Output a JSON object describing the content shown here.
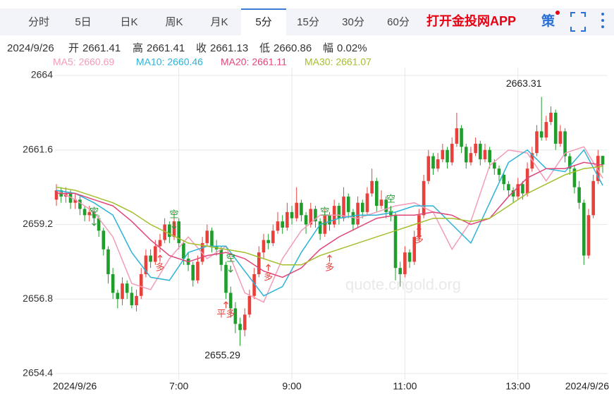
{
  "tabs": [
    "分时",
    "5日",
    "日K",
    "周K",
    "月K",
    "5分",
    "15分",
    "30分",
    "60分"
  ],
  "active_tab": 5,
  "cta": "打开金投网APP",
  "strategy_icon": "策",
  "info": [
    {
      "text": "2024/9/26"
    },
    {
      "text": "开"
    },
    {
      "text": "2661.41"
    },
    {
      "text": "高"
    },
    {
      "text": "2661.41"
    },
    {
      "text": "收"
    },
    {
      "text": "2661.13"
    },
    {
      "text": "低"
    },
    {
      "text": "2660.86"
    },
    {
      "text": "幅"
    },
    {
      "text": "0.02%"
    }
  ],
  "chart_data": {
    "type": "candlestick",
    "watermark": "quote.cngold.org",
    "date_start": "2024/9/26",
    "date_end": "2024/9/26",
    "up_color": "#e8413c",
    "down_color": "#1f9e2c",
    "ylim": [
      2654.4,
      2664
    ],
    "yticks": [
      2664,
      2661.6,
      2659.2,
      2656.8,
      2654.4
    ],
    "grid": true,
    "xlim": [
      0,
      116
    ],
    "xticks": [
      {
        "value": 26,
        "label": "7:00"
      },
      {
        "value": 50,
        "label": "9:00"
      },
      {
        "value": 74,
        "label": "11:00"
      },
      {
        "value": 98,
        "label": "13:00"
      }
    ],
    "ohlc": [
      [
        2660.0,
        2660.5,
        2659.8,
        2660.3
      ],
      [
        2660.3,
        2660.4,
        2659.9,
        2660.1
      ],
      [
        2660.1,
        2660.4,
        2659.9,
        2660.2
      ],
      [
        2660.2,
        2660.3,
        2659.7,
        2659.9
      ],
      [
        2659.9,
        2660.2,
        2659.7,
        2660.0
      ],
      [
        2660.0,
        2660.1,
        2659.5,
        2659.7
      ],
      [
        2659.7,
        2659.8,
        2659.3,
        2659.5
      ],
      [
        2659.5,
        2659.8,
        2659.3,
        2659.6
      ],
      [
        2659.6,
        2659.7,
        2659.2,
        2659.4
      ],
      [
        2659.4,
        2659.5,
        2658.8,
        2659.0
      ],
      [
        2659.0,
        2659.1,
        2658.2,
        2658.4
      ],
      [
        2658.4,
        2658.5,
        2657.3,
        2657.6
      ],
      [
        2657.6,
        2657.8,
        2656.8,
        2657.0
      ],
      [
        2657.0,
        2657.1,
        2656.5,
        2656.8
      ],
      [
        2656.8,
        2657.5,
        2656.6,
        2657.3
      ],
      [
        2657.3,
        2657.4,
        2656.8,
        2657.0
      ],
      [
        2657.0,
        2657.2,
        2656.5,
        2656.6
      ],
      [
        2656.6,
        2657.1,
        2656.4,
        2656.9
      ],
      [
        2656.9,
        2657.8,
        2656.8,
        2657.6
      ],
      [
        2657.6,
        2658.4,
        2657.5,
        2658.2
      ],
      [
        2658.2,
        2658.4,
        2657.8,
        2658.0
      ],
      [
        2658.0,
        2658.7,
        2657.9,
        2658.5
      ],
      [
        2658.5,
        2658.9,
        2658.3,
        2658.7
      ],
      [
        2658.7,
        2659.4,
        2658.6,
        2659.2
      ],
      [
        2659.2,
        2659.3,
        2658.6,
        2658.8
      ],
      [
        2658.8,
        2659.6,
        2658.7,
        2659.3
      ],
      [
        2659.3,
        2659.4,
        2658.4,
        2658.6
      ],
      [
        2658.6,
        2658.7,
        2657.9,
        2658.1
      ],
      [
        2658.1,
        2658.3,
        2657.7,
        2657.9
      ],
      [
        2657.9,
        2658.0,
        2657.2,
        2657.4
      ],
      [
        2657.4,
        2658.2,
        2657.3,
        2658.0
      ],
      [
        2658.0,
        2658.8,
        2657.9,
        2658.6
      ],
      [
        2658.6,
        2659.2,
        2658.5,
        2659.0
      ],
      [
        2659.0,
        2659.1,
        2658.3,
        2658.5
      ],
      [
        2658.5,
        2658.7,
        2658.2,
        2658.4
      ],
      [
        2658.4,
        2658.5,
        2657.7,
        2657.9
      ],
      [
        2657.9,
        2658.0,
        2656.8,
        2657.0
      ],
      [
        2657.0,
        2657.2,
        2656.2,
        2656.5
      ],
      [
        2656.5,
        2656.7,
        2655.7,
        2656.0
      ],
      [
        2656.0,
        2656.2,
        2655.29,
        2655.8
      ],
      [
        2655.8,
        2656.5,
        2655.6,
        2656.3
      ],
      [
        2656.3,
        2657.1,
        2656.2,
        2656.9
      ],
      [
        2656.9,
        2657.8,
        2656.8,
        2657.6
      ],
      [
        2657.6,
        2658.5,
        2657.5,
        2658.3
      ],
      [
        2658.3,
        2658.9,
        2658.1,
        2658.7
      ],
      [
        2658.7,
        2658.9,
        2658.4,
        2658.6
      ],
      [
        2658.6,
        2659.2,
        2658.5,
        2659.0
      ],
      [
        2659.0,
        2659.6,
        2658.9,
        2659.3
      ],
      [
        2659.3,
        2659.5,
        2658.9,
        2659.1
      ],
      [
        2659.1,
        2659.9,
        2659.0,
        2659.6
      ],
      [
        2659.6,
        2659.8,
        2659.2,
        2659.4
      ],
      [
        2659.4,
        2660.4,
        2659.3,
        2659.9
      ],
      [
        2659.9,
        2660.0,
        2659.3,
        2659.5
      ],
      [
        2659.5,
        2659.6,
        2658.9,
        2659.2
      ],
      [
        2659.2,
        2659.9,
        2659.1,
        2659.7
      ],
      [
        2659.7,
        2659.8,
        2659.1,
        2659.3
      ],
      [
        2659.3,
        2659.4,
        2658.7,
        2658.9
      ],
      [
        2658.9,
        2659.7,
        2658.8,
        2659.5
      ],
      [
        2659.5,
        2659.6,
        2659.0,
        2659.2
      ],
      [
        2659.2,
        2660.0,
        2659.1,
        2659.8
      ],
      [
        2659.8,
        2659.9,
        2659.2,
        2659.4
      ],
      [
        2659.4,
        2660.4,
        2659.3,
        2660.1
      ],
      [
        2660.1,
        2660.2,
        2659.4,
        2659.6
      ],
      [
        2659.6,
        2659.7,
        2659.0,
        2659.2
      ],
      [
        2659.2,
        2660.1,
        2659.1,
        2659.9
      ],
      [
        2659.9,
        2660.0,
        2659.4,
        2659.6
      ],
      [
        2659.6,
        2660.4,
        2659.5,
        2660.2
      ],
      [
        2660.2,
        2661.0,
        2660.1,
        2660.6
      ],
      [
        2660.6,
        2660.7,
        2659.6,
        2659.8
      ],
      [
        2659.8,
        2660.3,
        2659.7,
        2660.0
      ],
      [
        2660.0,
        2660.1,
        2659.4,
        2659.6
      ],
      [
        2659.6,
        2659.8,
        2659.3,
        2659.5
      ],
      [
        2659.5,
        2659.6,
        2657.4,
        2657.8
      ],
      [
        2657.8,
        2658.0,
        2657.2,
        2657.6
      ],
      [
        2657.6,
        2658.5,
        2657.5,
        2658.3
      ],
      [
        2658.3,
        2658.4,
        2657.8,
        2658.0
      ],
      [
        2658.0,
        2659.0,
        2657.9,
        2658.8
      ],
      [
        2658.8,
        2659.7,
        2658.7,
        2659.5
      ],
      [
        2659.5,
        2660.8,
        2659.4,
        2660.6
      ],
      [
        2660.6,
        2661.6,
        2660.5,
        2661.4
      ],
      [
        2661.4,
        2661.5,
        2660.8,
        2661.0
      ],
      [
        2661.0,
        2661.5,
        2660.9,
        2661.3
      ],
      [
        2661.3,
        2661.8,
        2661.2,
        2661.6
      ],
      [
        2661.6,
        2661.7,
        2661.0,
        2661.2
      ],
      [
        2661.2,
        2662.0,
        2661.1,
        2661.8
      ],
      [
        2661.8,
        2662.8,
        2661.7,
        2662.3
      ],
      [
        2662.3,
        2662.4,
        2661.5,
        2661.7
      ],
      [
        2661.7,
        2661.8,
        2661.0,
        2661.2
      ],
      [
        2661.2,
        2661.7,
        2661.1,
        2661.5
      ],
      [
        2661.5,
        2662.0,
        2661.4,
        2661.8
      ],
      [
        2661.8,
        2661.9,
        2661.1,
        2661.3
      ],
      [
        2661.3,
        2661.8,
        2661.2,
        2661.6
      ],
      [
        2661.6,
        2661.7,
        2661.0,
        2661.2
      ],
      [
        2661.2,
        2661.3,
        2660.8,
        2661.0
      ],
      [
        2661.0,
        2661.1,
        2660.6,
        2660.8
      ],
      [
        2660.8,
        2660.9,
        2660.3,
        2660.5
      ],
      [
        2660.5,
        2660.6,
        2660.1,
        2660.3
      ],
      [
        2660.3,
        2660.4,
        2659.9,
        2660.1
      ],
      [
        2660.1,
        2660.7,
        2660.0,
        2660.5
      ],
      [
        2660.5,
        2660.6,
        2660.0,
        2660.2
      ],
      [
        2660.2,
        2661.2,
        2660.1,
        2661.0
      ],
      [
        2661.0,
        2661.7,
        2660.9,
        2661.5
      ],
      [
        2661.5,
        2662.4,
        2661.4,
        2662.2
      ],
      [
        2662.2,
        2663.31,
        2661.9,
        2662.0
      ],
      [
        2662.0,
        2662.7,
        2661.9,
        2662.5
      ],
      [
        2662.5,
        2663.0,
        2662.4,
        2662.8
      ],
      [
        2662.8,
        2662.9,
        2661.6,
        2661.8
      ],
      [
        2661.8,
        2662.4,
        2661.7,
        2662.2
      ],
      [
        2662.2,
        2662.3,
        2661.2,
        2661.4
      ],
      [
        2661.4,
        2661.5,
        2660.8,
        2661.0
      ],
      [
        2661.0,
        2661.1,
        2660.2,
        2660.4
      ],
      [
        2660.4,
        2660.6,
        2659.7,
        2659.9
      ],
      [
        2659.9,
        2660.0,
        2657.9,
        2658.2
      ],
      [
        2658.2,
        2659.7,
        2658.1,
        2659.5
      ],
      [
        2659.5,
        2660.8,
        2659.4,
        2660.6
      ],
      [
        2660.6,
        2661.6,
        2660.5,
        2661.41
      ],
      [
        2661.41,
        2661.41,
        2660.86,
        2661.13
      ]
    ],
    "ma_x": [
      0,
      4,
      8,
      12,
      16,
      20,
      24,
      28,
      32,
      36,
      40,
      44,
      48,
      52,
      56,
      60,
      64,
      68,
      72,
      76,
      80,
      84,
      88,
      92,
      96,
      100,
      104,
      108,
      112,
      116
    ],
    "ma_series": [
      {
        "name": "MA5: 2660.69",
        "color": "#f29cb7",
        "values": [
          2660.3,
          2660.0,
          2659.6,
          2658.8,
          2657.3,
          2657.1,
          2658.1,
          2658.8,
          2658.1,
          2658.5,
          2657.0,
          2656.7,
          2658.1,
          2659.0,
          2659.5,
          2659.5,
          2659.4,
          2659.6,
          2659.8,
          2659.9,
          2659.6,
          2658.4,
          2659.3,
          2661.1,
          2661.6,
          2661.5,
          2660.6,
          2661.5,
          2661.7,
          2660.69
        ]
      },
      {
        "name": "MA10: 2660.46",
        "color": "#2bb3d8",
        "values": [
          2660.3,
          2660.2,
          2659.9,
          2659.5,
          2658.3,
          2657.5,
          2657.4,
          2658.3,
          2658.5,
          2658.5,
          2657.7,
          2656.9,
          2657.2,
          2658.3,
          2659.2,
          2659.4,
          2659.5,
          2659.5,
          2659.6,
          2659.8,
          2659.8,
          2659.2,
          2658.6,
          2659.9,
          2661.2,
          2661.6,
          2661.0,
          2660.9,
          2661.6,
          2660.46
        ]
      },
      {
        "name": "MA20: 2661.11",
        "color": "#e0457a",
        "values": [
          2660.2,
          2660.2,
          2660.0,
          2659.8,
          2659.3,
          2658.7,
          2658.2,
          2658.0,
          2658.2,
          2658.3,
          2658.1,
          2657.7,
          2657.5,
          2657.8,
          2658.4,
          2658.8,
          2659.1,
          2659.4,
          2659.5,
          2659.5,
          2659.6,
          2659.5,
          2659.2,
          2659.4,
          2660.1,
          2660.7,
          2661.0,
          2661.0,
          2661.2,
          2661.11
        ]
      },
      {
        "name": "MA30: 2661.07",
        "color": "#a3bf2c",
        "values": [
          2660.4,
          2660.3,
          2660.1,
          2659.9,
          2659.6,
          2659.2,
          2658.9,
          2658.6,
          2658.5,
          2658.4,
          2658.3,
          2658.1,
          2657.9,
          2657.9,
          2658.2,
          2658.4,
          2658.6,
          2658.8,
          2659.0,
          2659.2,
          2659.4,
          2659.4,
          2659.3,
          2659.4,
          2659.8,
          2660.2,
          2660.5,
          2660.8,
          2661.0,
          2661.07
        ]
      }
    ],
    "annotations": [
      {
        "index": 103,
        "value": 2663.31,
        "position": "above"
      },
      {
        "index": 39,
        "value": 2655.29,
        "position": "below"
      }
    ],
    "signals": [
      {
        "label": "空",
        "index": 8,
        "price": 2659.6,
        "color": "#1f9e2c",
        "direction": "down"
      },
      {
        "label": "多",
        "index": 22,
        "price": 2657.8,
        "color": "#e8413c",
        "direction": "up"
      },
      {
        "label": "空",
        "index": 25,
        "price": 2659.5,
        "color": "#1f9e2c",
        "direction": "down"
      },
      {
        "label": "平多",
        "index": 36,
        "price": 2656.3,
        "color": "#e8413c",
        "direction": "up"
      },
      {
        "label": "空",
        "index": 37,
        "price": 2658.1,
        "color": "#1f9e2c",
        "direction": "down"
      },
      {
        "label": "多",
        "index": 45,
        "price": 2657.5,
        "color": "#e8413c",
        "direction": "up"
      },
      {
        "label": "空",
        "index": 57,
        "price": 2659.6,
        "color": "#1f9e2c",
        "direction": "down"
      },
      {
        "label": "多",
        "index": 58,
        "price": 2657.8,
        "color": "#e8413c",
        "direction": "up"
      },
      {
        "label": "空",
        "index": 71,
        "price": 2660.0,
        "color": "#1f9e2c",
        "direction": "down"
      },
      {
        "label": "多",
        "index": 77,
        "price": 2658.7,
        "color": "#e8413c",
        "direction": "up"
      }
    ]
  }
}
